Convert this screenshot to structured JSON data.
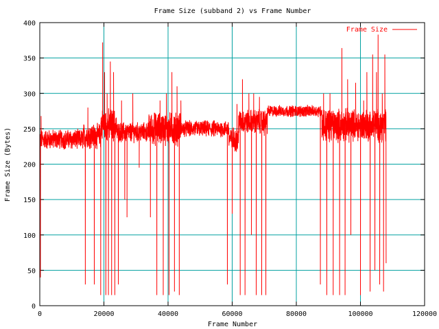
{
  "chart_data": {
    "type": "line",
    "title": "Frame Size (subband 2) vs Frame Number",
    "xlabel": "Frame Number",
    "ylabel": "Frame Size (Bytes)",
    "xlim": [
      0,
      120000
    ],
    "ylim": [
      0,
      400
    ],
    "xticks": [
      0,
      20000,
      40000,
      60000,
      80000,
      100000,
      120000
    ],
    "yticks": [
      0,
      50,
      100,
      150,
      200,
      250,
      300,
      350,
      400
    ],
    "grid": true,
    "grid_color": "#00a0a0",
    "legend_position": "top-right",
    "series": [
      {
        "name": "Frame Size",
        "color": "#ff0000",
        "segments": [
          {
            "x_start": 0,
            "x_end": 13500,
            "base": 235,
            "spread": 12
          },
          {
            "x_start": 13500,
            "x_end": 19000,
            "base": 240,
            "spread": 15
          },
          {
            "x_start": 19000,
            "x_end": 24000,
            "base": 255,
            "spread": 20
          },
          {
            "x_start": 24000,
            "x_end": 34000,
            "base": 245,
            "spread": 12
          },
          {
            "x_start": 34000,
            "x_end": 44000,
            "base": 250,
            "spread": 20
          },
          {
            "x_start": 44000,
            "x_end": 59000,
            "base": 250,
            "spread": 10
          },
          {
            "x_start": 59000,
            "x_end": 62000,
            "base": 235,
            "spread": 15
          },
          {
            "x_start": 62000,
            "x_end": 71000,
            "base": 260,
            "spread": 15
          },
          {
            "x_start": 71000,
            "x_end": 88000,
            "base": 275,
            "spread": 7
          },
          {
            "x_start": 88000,
            "x_end": 108000,
            "base": 255,
            "spread": 20
          }
        ],
        "spikes": [
          [
            200,
            40
          ],
          [
            400,
            268
          ],
          [
            14200,
            30
          ],
          [
            15000,
            280
          ],
          [
            17000,
            30
          ],
          [
            18000,
            255
          ],
          [
            19000,
            15
          ],
          [
            19600,
            372
          ],
          [
            20200,
            330
          ],
          [
            20600,
            15
          ],
          [
            21000,
            300
          ],
          [
            21400,
            15
          ],
          [
            22000,
            345
          ],
          [
            22400,
            15
          ],
          [
            23000,
            330
          ],
          [
            23400,
            15
          ],
          [
            24500,
            30
          ],
          [
            25500,
            290
          ],
          [
            26500,
            150
          ],
          [
            27200,
            125
          ],
          [
            29000,
            300
          ],
          [
            31000,
            195
          ],
          [
            34500,
            125
          ],
          [
            35800,
            270
          ],
          [
            36500,
            15
          ],
          [
            37500,
            290
          ],
          [
            38500,
            15
          ],
          [
            39500,
            300
          ],
          [
            40300,
            15
          ],
          [
            41200,
            330
          ],
          [
            42000,
            20
          ],
          [
            42800,
            310
          ],
          [
            43500,
            15
          ],
          [
            44000,
            290
          ],
          [
            58500,
            30
          ],
          [
            60000,
            130
          ],
          [
            61500,
            285
          ],
          [
            62500,
            15
          ],
          [
            63200,
            320
          ],
          [
            64000,
            15
          ],
          [
            65200,
            300
          ],
          [
            66000,
            100
          ],
          [
            66700,
            300
          ],
          [
            67500,
            15
          ],
          [
            68500,
            295
          ],
          [
            69200,
            15
          ],
          [
            70000,
            240
          ],
          [
            70500,
            15
          ],
          [
            71000,
            270
          ],
          [
            87500,
            30
          ],
          [
            88500,
            300
          ],
          [
            89500,
            15
          ],
          [
            90500,
            300
          ],
          [
            91500,
            15
          ],
          [
            92500,
            250
          ],
          [
            93500,
            15
          ],
          [
            94200,
            364
          ],
          [
            95200,
            15
          ],
          [
            96000,
            320
          ],
          [
            97000,
            100
          ],
          [
            98500,
            315
          ],
          [
            100000,
            15
          ],
          [
            101000,
            290
          ],
          [
            102000,
            330
          ],
          [
            103000,
            20
          ],
          [
            103800,
            355
          ],
          [
            104500,
            50
          ],
          [
            105000,
            330
          ],
          [
            105500,
            383
          ],
          [
            106000,
            30
          ],
          [
            106800,
            300
          ],
          [
            107200,
            20
          ],
          [
            107600,
            355
          ],
          [
            108000,
            60
          ]
        ]
      }
    ]
  }
}
